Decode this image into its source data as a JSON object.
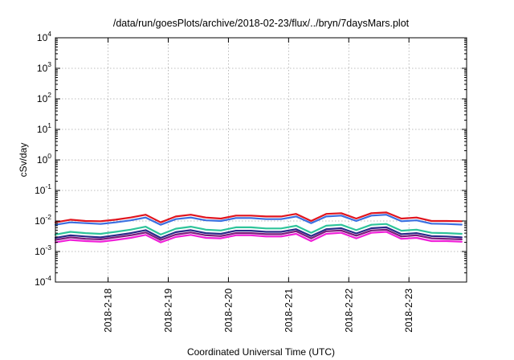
{
  "chart_data": {
    "type": "line",
    "title": "/data/run/goesPlots/archive/2018-02-23/flux/../bryn/7daysMars.plot",
    "xlabel": "Coordinated Universal Time (UTC)",
    "ylabel": "cSv/day",
    "y_scale": "log",
    "ylim": [
      0.0001,
      10000
    ],
    "xlim": [
      "2018-02-17T03:00",
      "2018-02-23T23:00"
    ],
    "grid": true,
    "x_ticks": [
      "2018-2-18",
      "2018-2-19",
      "2018-2-20",
      "2018-2-21",
      "2018-2-22",
      "2018-2-23"
    ],
    "y_ticks": [
      {
        "base": "10",
        "exp": "-4"
      },
      {
        "base": "10",
        "exp": "-3"
      },
      {
        "base": "10",
        "exp": "-2"
      },
      {
        "base": "10",
        "exp": "-1"
      },
      {
        "base": "10",
        "exp": "0"
      },
      {
        "base": "10",
        "exp": "1"
      },
      {
        "base": "10",
        "exp": "2"
      },
      {
        "base": "10",
        "exp": "3"
      },
      {
        "base": "10",
        "exp": "4"
      }
    ],
    "x": [
      "2018-02-17T03:00",
      "2018-02-17T09:00",
      "2018-02-17T15:00",
      "2018-02-17T21:00",
      "2018-02-18T03:00",
      "2018-02-18T09:00",
      "2018-02-18T15:00",
      "2018-02-18T21:00",
      "2018-02-19T03:00",
      "2018-02-19T09:00",
      "2018-02-19T15:00",
      "2018-02-19T21:00",
      "2018-02-20T03:00",
      "2018-02-20T09:00",
      "2018-02-20T15:00",
      "2018-02-20T21:00",
      "2018-02-21T03:00",
      "2018-02-21T09:00",
      "2018-02-21T15:00",
      "2018-02-21T21:00",
      "2018-02-22T03:00",
      "2018-02-22T09:00",
      "2018-02-22T15:00",
      "2018-02-22T21:00",
      "2018-02-23T03:00",
      "2018-02-23T09:00",
      "2018-02-23T15:00",
      "2018-02-23T21:00"
    ],
    "series": [
      {
        "color": "#e0141e",
        "values": [
          0.009,
          0.011,
          0.01,
          0.0098,
          0.011,
          0.013,
          0.016,
          0.009,
          0.014,
          0.016,
          0.013,
          0.012,
          0.015,
          0.015,
          0.014,
          0.014,
          0.017,
          0.01,
          0.017,
          0.018,
          0.012,
          0.018,
          0.019,
          0.012,
          0.013,
          0.01,
          0.01,
          0.0098
        ]
      },
      {
        "color": "#3b6fe0",
        "values": [
          0.0075,
          0.009,
          0.0085,
          0.008,
          0.009,
          0.0105,
          0.013,
          0.0075,
          0.0115,
          0.013,
          0.0105,
          0.01,
          0.0125,
          0.0125,
          0.0115,
          0.0115,
          0.014,
          0.0085,
          0.014,
          0.015,
          0.01,
          0.015,
          0.016,
          0.0098,
          0.0105,
          0.0082,
          0.008,
          0.0076
        ]
      },
      {
        "color": "#2ec49a",
        "values": [
          0.0036,
          0.0044,
          0.004,
          0.0038,
          0.0044,
          0.0052,
          0.0065,
          0.0036,
          0.0056,
          0.0065,
          0.0052,
          0.0049,
          0.0062,
          0.0062,
          0.0057,
          0.0057,
          0.007,
          0.0041,
          0.007,
          0.0075,
          0.005,
          0.0075,
          0.008,
          0.0048,
          0.0052,
          0.0041,
          0.004,
          0.0038
        ]
      },
      {
        "color": "#2a2a8a",
        "values": [
          0.0028,
          0.0034,
          0.0031,
          0.0029,
          0.0034,
          0.004,
          0.005,
          0.0028,
          0.0043,
          0.005,
          0.004,
          0.0038,
          0.0048,
          0.0048,
          0.0044,
          0.0044,
          0.0054,
          0.0032,
          0.0054,
          0.0058,
          0.0039,
          0.0058,
          0.0062,
          0.0037,
          0.004,
          0.0032,
          0.0031,
          0.0029
        ]
      },
      {
        "color": "#7a1a7a",
        "values": [
          0.0024,
          0.0029,
          0.0026,
          0.0025,
          0.0029,
          0.0034,
          0.0042,
          0.0024,
          0.0036,
          0.0042,
          0.0034,
          0.0032,
          0.004,
          0.004,
          0.0037,
          0.0037,
          0.0046,
          0.0027,
          0.0046,
          0.0049,
          0.0033,
          0.0049,
          0.0052,
          0.0031,
          0.0034,
          0.0027,
          0.0026,
          0.0025
        ]
      },
      {
        "color": "#f020d8",
        "values": [
          0.002,
          0.0024,
          0.0022,
          0.0021,
          0.0024,
          0.0028,
          0.0035,
          0.002,
          0.003,
          0.0035,
          0.0028,
          0.0027,
          0.0034,
          0.0034,
          0.0031,
          0.0031,
          0.0038,
          0.0022,
          0.0038,
          0.0041,
          0.0027,
          0.0041,
          0.0044,
          0.0026,
          0.0028,
          0.0022,
          0.0022,
          0.0021
        ]
      }
    ]
  }
}
